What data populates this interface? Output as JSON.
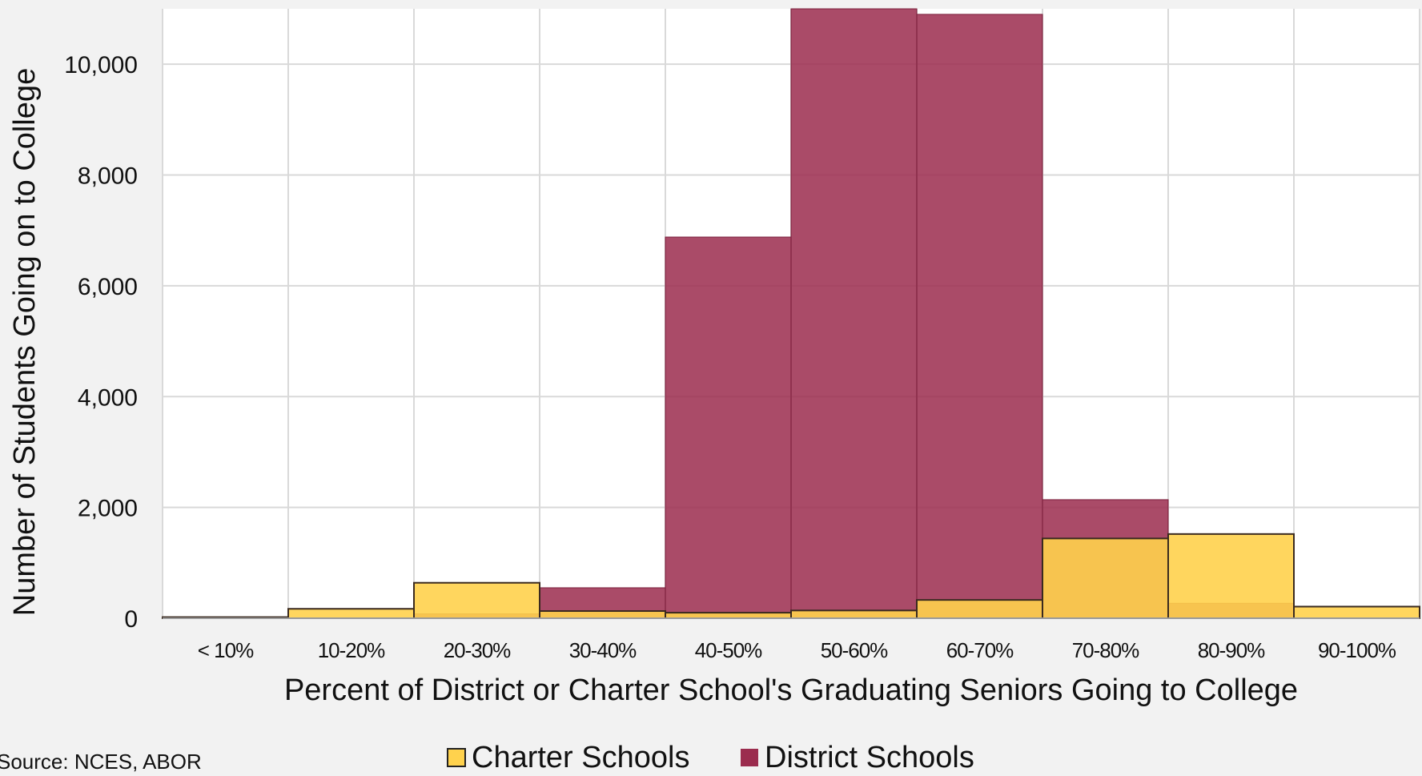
{
  "chart_data": {
    "type": "bar",
    "title": "",
    "xlabel": "Percent of District or Charter School's Graduating Seniors Going to College",
    "ylabel": "Number of  Students Going on to College",
    "categories": [
      "< 10%",
      "10-20%",
      "20-30%",
      "30-40%",
      "40-50%",
      "50-60%",
      "60-70%",
      "70-80%",
      "80-90%",
      "90-100%"
    ],
    "ylim": [
      0,
      11000
    ],
    "yticks": [
      0,
      2000,
      4000,
      6000,
      8000,
      10000
    ],
    "ytick_labels": [
      "0",
      "2,000",
      "4,000",
      "6,000",
      "8,000",
      "10,000"
    ],
    "grid": true,
    "legend_position": "bottom",
    "series": [
      {
        "name": "District Schools",
        "color": "#9b2c4e",
        "opacity": 0.85,
        "values": [
          0,
          0,
          80,
          550,
          6880,
          11200,
          10900,
          2140,
          270,
          0
        ]
      },
      {
        "name": "Charter Schools",
        "color": "#ffd24d",
        "opacity": 0.9,
        "values": [
          20,
          170,
          640,
          130,
          100,
          140,
          330,
          1440,
          1520,
          210
        ]
      }
    ],
    "source": "Source: NCES, ABOR"
  }
}
